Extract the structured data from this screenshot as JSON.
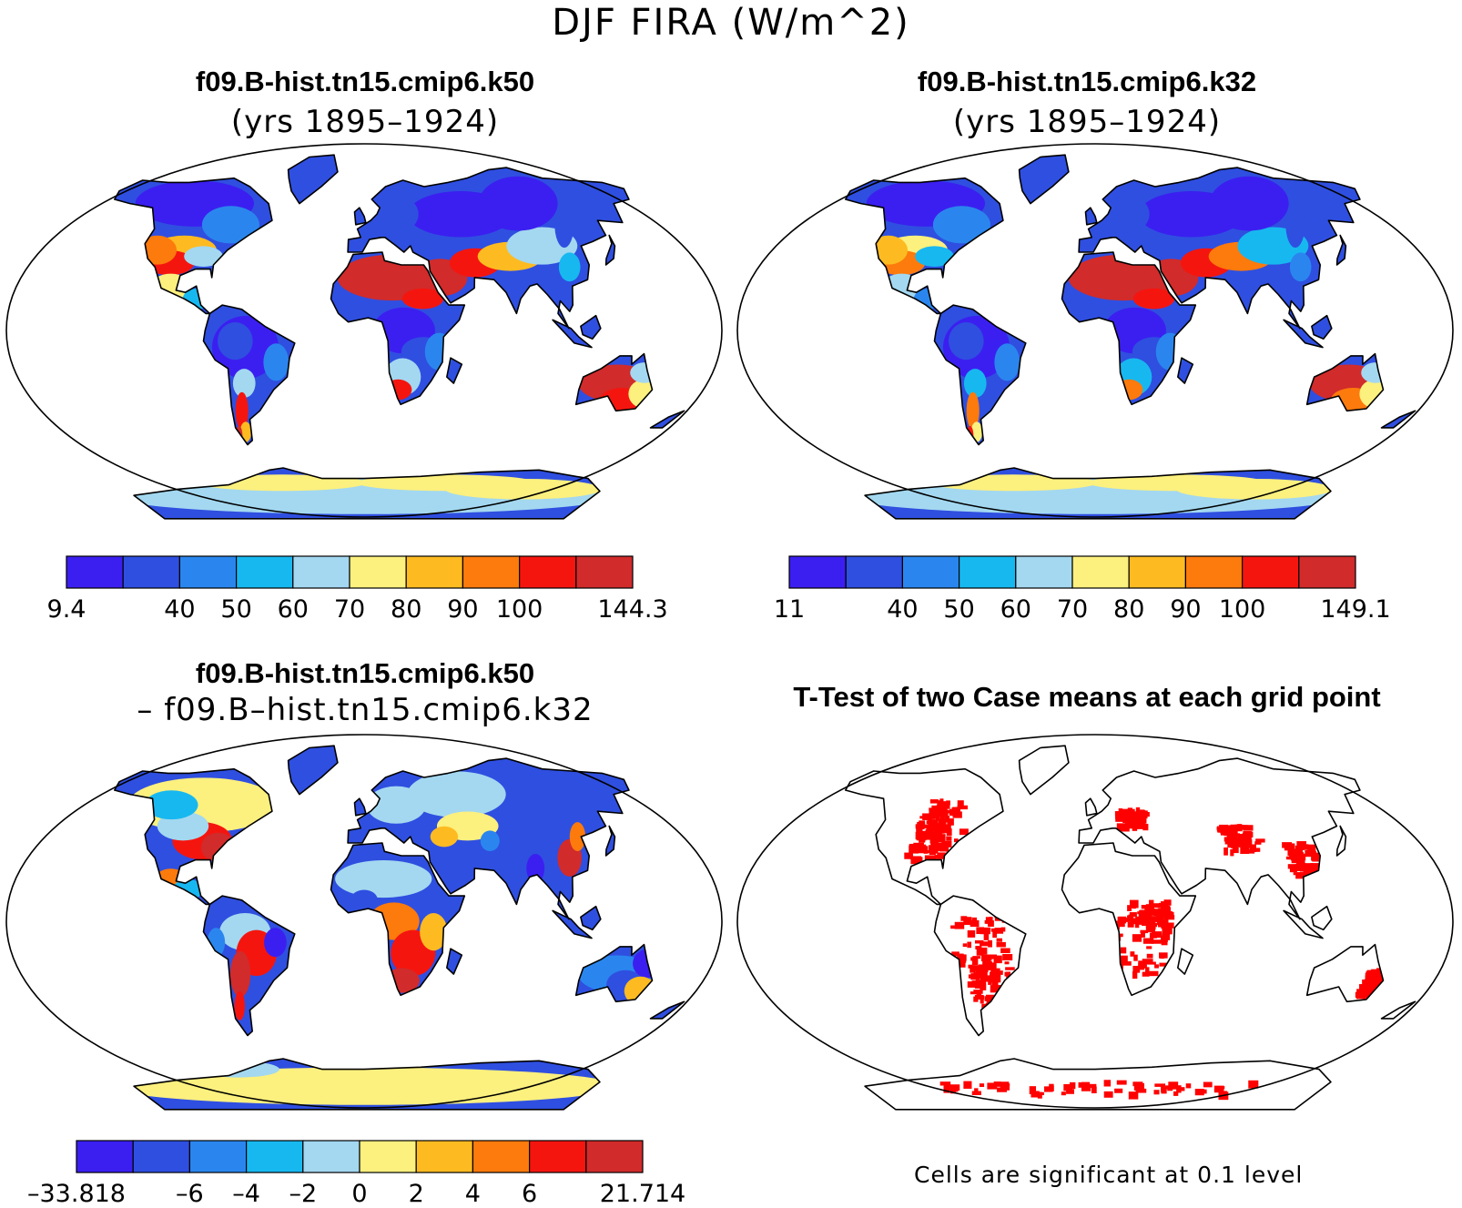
{
  "figure_title": "DJF FIRA (W/m^2)",
  "panels": [
    {
      "id": "k50",
      "title": "f09.B-hist.tn15.cmip6.k50",
      "subtitle": "(yrs 1895–1924)",
      "colorbar": {
        "colors": [
          "#3b1ff0",
          "#2f4fe0",
          "#2a86ee",
          "#17b8f0",
          "#a3d8f0",
          "#fcf07e",
          "#fdbb21",
          "#fd7a0c",
          "#f5150f",
          "#d12b2b"
        ],
        "labels": [
          "9.4",
          "",
          "40",
          "50",
          "60",
          "70",
          "80",
          "90",
          "100",
          "",
          "144.3"
        ]
      }
    },
    {
      "id": "k32",
      "title": "f09.B-hist.tn15.cmip6.k32",
      "subtitle": "(yrs 1895–1924)",
      "colorbar": {
        "colors": [
          "#3b1ff0",
          "#2f4fe0",
          "#2a86ee",
          "#17b8f0",
          "#a3d8f0",
          "#fcf07e",
          "#fdbb21",
          "#fd7a0c",
          "#f5150f",
          "#d12b2b"
        ],
        "labels": [
          "11",
          "",
          "40",
          "50",
          "60",
          "70",
          "80",
          "90",
          "100",
          "",
          "149.1"
        ]
      }
    },
    {
      "id": "diff",
      "title": "f09.B-hist.tn15.cmip6.k50",
      "subtitle": "– f09.B–hist.tn15.cmip6.k32",
      "colorbar": {
        "colors": [
          "#3b1ff0",
          "#2f4fe0",
          "#2a86ee",
          "#17b8f0",
          "#a3d8f0",
          "#fcf07e",
          "#fdbb21",
          "#fd7a0c",
          "#f5150f",
          "#d12b2b"
        ],
        "labels": [
          "–33.818",
          "",
          "–6",
          "–4",
          "–2",
          "0",
          "2",
          "4",
          "6",
          "",
          "21.714"
        ]
      }
    },
    {
      "id": "ttest",
      "title": "T-Test of two Case means at each grid point",
      "note": "Cells are significant at 0.1 level",
      "significance_color": "#ff0000"
    }
  ]
}
